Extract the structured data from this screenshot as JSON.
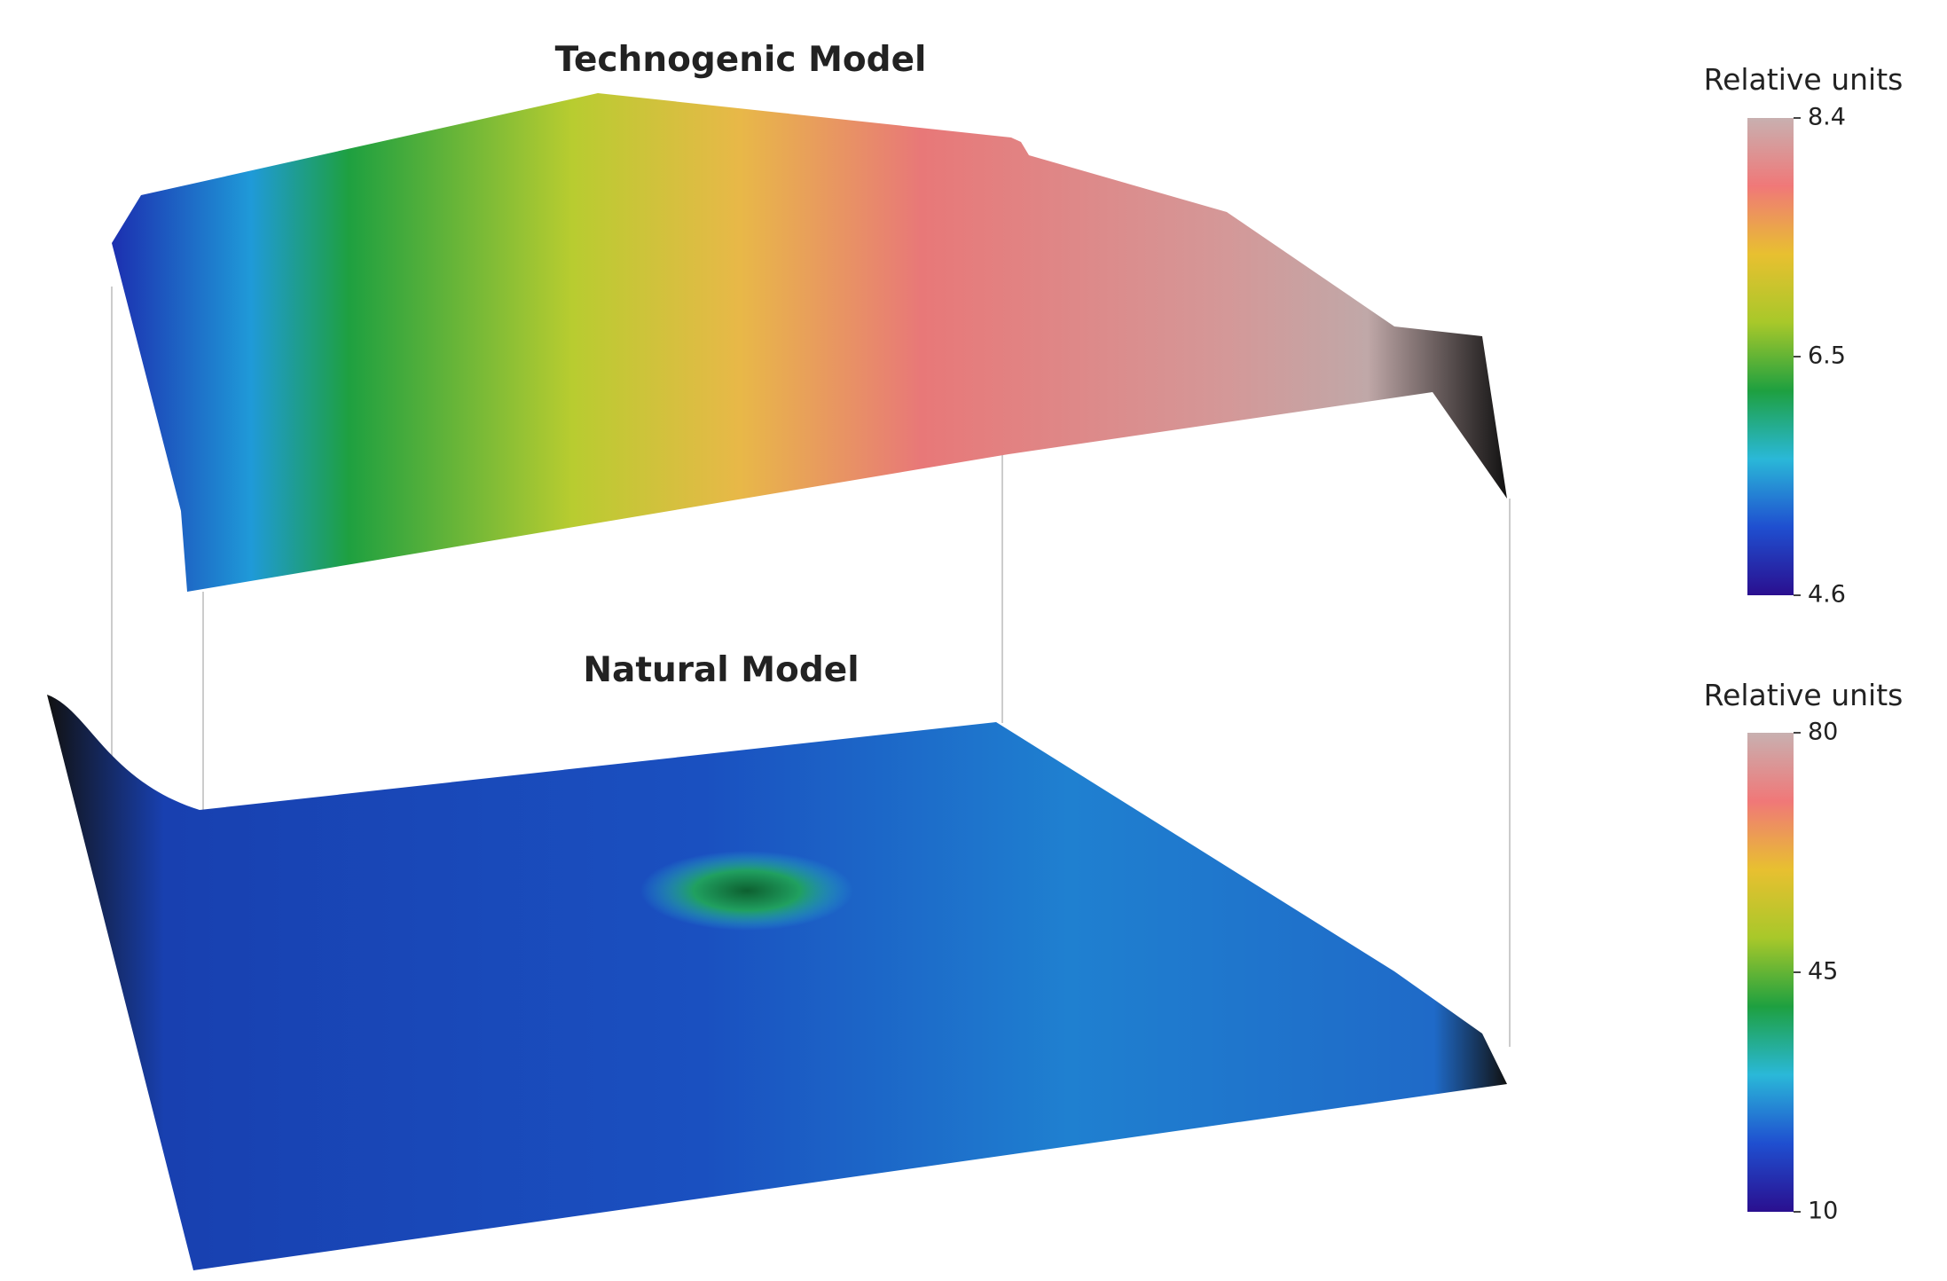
{
  "chart_data": [
    {
      "type": "surface",
      "title": "Technogenic Model",
      "colorbar": {
        "title": "Relative units",
        "range": [
          4.6,
          8.4
        ],
        "ticks": [
          8.4,
          6.5,
          4.6
        ]
      },
      "colorscale": [
        "#2a0f8f",
        "#1f4fd0",
        "#2ab8d8",
        "#1ea040",
        "#a8c82a",
        "#e8c030",
        "#f07878",
        "#c8b0b0"
      ]
    },
    {
      "type": "surface",
      "title": "Natural Model",
      "colorbar": {
        "title": "Relative units",
        "range": [
          10,
          80
        ],
        "ticks": [
          80,
          45,
          10
        ]
      },
      "colorscale": [
        "#2a0f8f",
        "#1f4fd0",
        "#2ab8d8",
        "#1ea040",
        "#a8c82a",
        "#e8c030",
        "#f07878",
        "#c8b0b0"
      ]
    }
  ]
}
